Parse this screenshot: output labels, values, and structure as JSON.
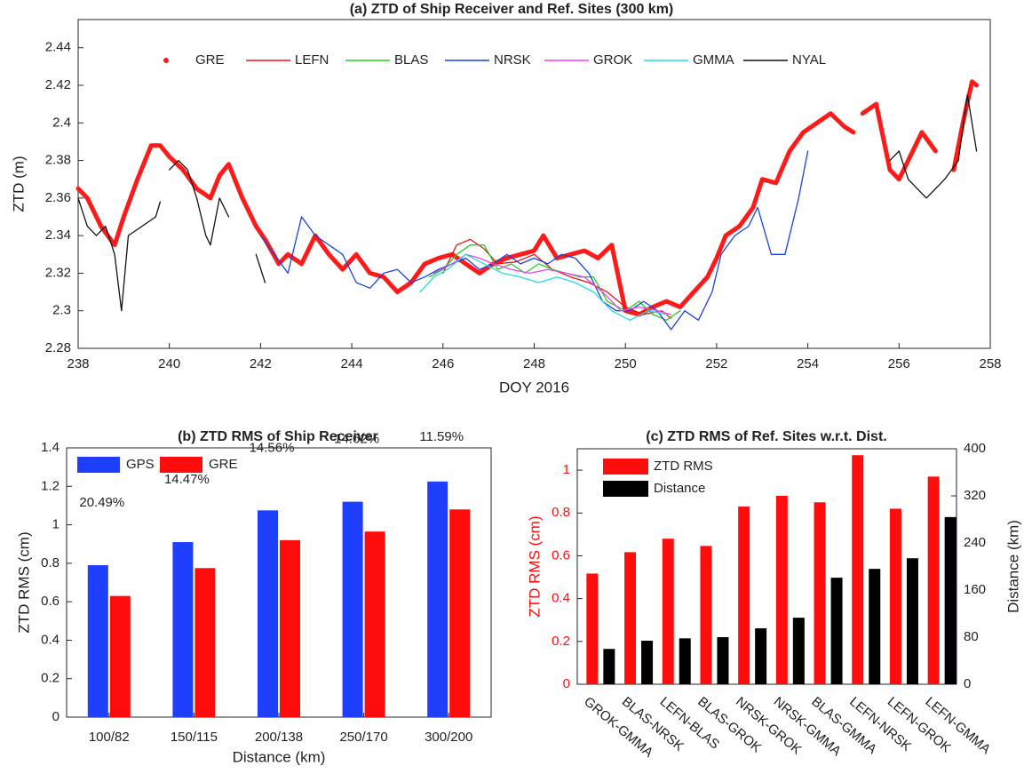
{
  "chart_data": [
    {
      "type": "line",
      "title": "(a) ZTD of Ship Receiver and Ref. Sites (300 km)",
      "xlabel": "DOY 2016",
      "ylabel": "ZTD (m)",
      "xlim": [
        238,
        258
      ],
      "xticks": [
        238,
        240,
        242,
        244,
        246,
        248,
        250,
        252,
        254,
        256,
        258
      ],
      "ylim": [
        2.28,
        2.455
      ],
      "yticks": [
        2.28,
        2.3,
        2.32,
        2.34,
        2.36,
        2.38,
        2.4,
        2.42,
        2.44
      ],
      "legend": "top",
      "series": [
        {
          "name": "GRE",
          "color": "#ff1a1a",
          "marker": "dot",
          "x": [
            238.0,
            238.2,
            238.5,
            238.8,
            239.0,
            239.3,
            239.6,
            239.8,
            240.0,
            240.3,
            240.6,
            240.9,
            241.1,
            241.3,
            241.6,
            241.9,
            242.1,
            242.4,
            242.6,
            242.9,
            243.2,
            243.5,
            243.8,
            244.1,
            244.4,
            244.7,
            245.0,
            245.3,
            245.6,
            245.9,
            246.2,
            246.5,
            246.8,
            247.1,
            247.4,
            247.7,
            248.0,
            248.2,
            248.5,
            248.8,
            249.1,
            249.4,
            249.7,
            250.0,
            250.3,
            250.6,
            250.9,
            251.2,
            251.5,
            251.8,
            252.0,
            252.2,
            252.5,
            252.8,
            253.0,
            253.3,
            253.6,
            253.9,
            254.2,
            254.5,
            254.8,
            255.0,
            255.1,
            255.2,
            255.5,
            255.8,
            256.0,
            256.2,
            256.5,
            256.8,
            257.0,
            257.2,
            257.4,
            257.6,
            257.7
          ],
          "values": [
            2.365,
            2.36,
            2.345,
            2.335,
            2.35,
            2.37,
            2.388,
            2.388,
            2.382,
            2.375,
            2.365,
            2.36,
            2.372,
            2.378,
            2.36,
            2.345,
            2.338,
            2.325,
            2.33,
            2.325,
            2.34,
            2.33,
            2.322,
            2.33,
            2.32,
            2.318,
            2.31,
            2.315,
            2.325,
            2.328,
            2.33,
            2.325,
            2.32,
            2.325,
            2.328,
            2.33,
            2.332,
            2.34,
            2.328,
            2.33,
            2.332,
            2.328,
            2.335,
            2.3,
            2.298,
            2.302,
            2.305,
            2.302,
            2.31,
            2.318,
            2.328,
            2.34,
            2.345,
            2.355,
            2.37,
            2.368,
            2.385,
            2.395,
            2.4,
            2.405,
            2.398,
            2.395,
            null,
            2.405,
            2.41,
            2.375,
            2.37,
            2.38,
            2.395,
            2.385,
            null,
            2.375,
            2.4,
            2.422,
            2.42
          ]
        },
        {
          "name": "LEFN",
          "color": "#e8141e",
          "marker": "none",
          "x": [
            246.0,
            246.3,
            246.6,
            246.9,
            247.2,
            247.6,
            248.0,
            248.4,
            248.8,
            249.2,
            249.6,
            250.0,
            250.4,
            250.8,
            251.0
          ],
          "values": [
            2.32,
            2.335,
            2.338,
            2.333,
            2.325,
            2.326,
            2.33,
            2.322,
            2.318,
            2.315,
            2.31,
            2.302,
            2.298,
            2.3,
            2.296
          ]
        },
        {
          "name": "BLAS",
          "color": "#22cc22",
          "marker": "none",
          "x": [
            245.7,
            246.0,
            246.3,
            246.6,
            246.9,
            247.2,
            247.5,
            247.8,
            248.1,
            248.4,
            248.7,
            249.0,
            249.3,
            249.6,
            250.0,
            250.3,
            250.6,
            250.9,
            251.2
          ],
          "values": [
            2.318,
            2.322,
            2.33,
            2.335,
            2.335,
            2.322,
            2.325,
            2.32,
            2.325,
            2.322,
            2.32,
            2.318,
            2.318,
            2.305,
            2.3,
            2.305,
            2.298,
            2.295,
            2.3
          ]
        },
        {
          "name": "NRSK",
          "color": "#1a44dd",
          "marker": "none",
          "x": [
            242.0,
            242.3,
            242.6,
            242.9,
            243.2,
            243.5,
            243.8,
            244.1,
            244.4,
            244.7,
            245.0,
            245.3,
            245.6,
            245.9,
            246.2,
            246.5,
            246.8,
            247.1,
            247.4,
            247.7,
            248.0,
            248.3,
            248.6,
            248.9,
            249.2,
            249.5,
            249.8,
            250.1,
            250.4,
            250.7,
            251.0,
            251.3,
            251.6,
            251.9,
            252.1,
            252.4,
            252.7,
            252.9,
            253.2,
            253.5,
            253.8,
            254.0
          ],
          "values": [
            2.34,
            2.33,
            2.32,
            2.35,
            2.34,
            2.335,
            2.33,
            2.315,
            2.312,
            2.32,
            2.322,
            2.315,
            2.318,
            2.322,
            2.325,
            2.328,
            2.322,
            2.325,
            2.33,
            2.325,
            2.328,
            2.325,
            2.33,
            2.328,
            2.32,
            2.305,
            2.3,
            2.3,
            2.305,
            2.3,
            2.29,
            2.3,
            2.295,
            2.31,
            2.33,
            2.34,
            2.345,
            2.355,
            2.33,
            2.33,
            2.36,
            2.385
          ]
        },
        {
          "name": "GROK",
          "color": "#ee44ee",
          "marker": "none",
          "x": [
            245.8,
            246.2,
            246.5,
            246.8,
            247.1,
            247.5,
            247.9,
            248.3,
            248.7,
            249.1,
            249.5,
            249.9,
            250.3,
            250.7,
            251.0
          ],
          "values": [
            2.32,
            2.325,
            2.33,
            2.328,
            2.325,
            2.322,
            2.32,
            2.322,
            2.32,
            2.318,
            2.31,
            2.3,
            2.302,
            2.3,
            2.298
          ]
        },
        {
          "name": "GMMA",
          "color": "#22dddd",
          "marker": "none",
          "x": [
            245.5,
            245.8,
            246.1,
            246.5,
            246.9,
            247.3,
            247.7,
            248.1,
            248.5,
            248.9,
            249.3,
            249.7,
            250.1,
            250.5,
            250.9
          ],
          "values": [
            2.31,
            2.318,
            2.322,
            2.33,
            2.325,
            2.32,
            2.318,
            2.315,
            2.318,
            2.315,
            2.31,
            2.3,
            2.295,
            2.3,
            2.298
          ]
        },
        {
          "name": "NYAL",
          "color": "#111111",
          "marker": "none",
          "x": [
            238.0,
            238.2,
            238.4,
            238.6,
            238.8,
            238.95,
            239.1,
            239.4,
            239.7,
            239.8,
            239.9,
            240.0,
            240.2,
            240.4,
            240.6,
            240.8,
            240.9,
            241.1,
            241.3,
            241.6,
            241.9,
            242.1,
            249.0,
            255.8,
            256.0,
            256.2,
            256.4,
            256.6,
            256.8,
            257.0,
            257.3,
            257.5,
            257.7
          ],
          "values": [
            2.36,
            2.345,
            2.34,
            2.345,
            2.33,
            2.3,
            2.34,
            2.345,
            2.35,
            2.358,
            null,
            2.375,
            2.38,
            2.375,
            2.36,
            2.34,
            2.335,
            2.36,
            2.35,
            null,
            2.33,
            2.315,
            null,
            2.38,
            2.385,
            2.37,
            2.365,
            2.36,
            2.365,
            2.37,
            2.38,
            2.415,
            2.385
          ]
        }
      ]
    },
    {
      "type": "bar",
      "title": "(b) ZTD RMS of Ship Receiver",
      "xlabel": "Distance (km)",
      "ylabel": "ZTD RMS (cm)",
      "categories": [
        "100/82",
        "150/115",
        "200/138",
        "250/170",
        "300/200"
      ],
      "ylim": [
        0,
        1.4
      ],
      "yticks": [
        0,
        0.2,
        0.4,
        0.6,
        0.8,
        1,
        1.2,
        1.4
      ],
      "legend": "upper left",
      "annotations": [
        "20.49%",
        "14.47%",
        "14.56%",
        "14.62%",
        "11.59%"
      ],
      "series": [
        {
          "name": "GPS",
          "color": "#1f3fff",
          "values": [
            0.79,
            0.91,
            1.075,
            1.12,
            1.225
          ]
        },
        {
          "name": "GRE",
          "color": "#ff0d0d",
          "values": [
            0.63,
            0.775,
            0.92,
            0.965,
            1.08
          ]
        }
      ]
    },
    {
      "type": "bar",
      "title": "(c) ZTD RMS of Ref. Sites w.r.t. Dist.",
      "ylabel": "ZTD RMS (cm)",
      "y2label": "Distance (km)",
      "categories": [
        "GROK-GMMA",
        "BLAS-NRSK",
        "LEFN-BLAS",
        "BLAS-GROK",
        "NRSK-GROK",
        "NRSK-GMMA",
        "BLAS-GMMA",
        "LEFN-NRSK",
        "LEFN-GROK",
        "LEFN-GMMA"
      ],
      "ylim": [
        0,
        1.1
      ],
      "yticks": [
        0,
        0.2,
        0.4,
        0.6,
        0.8,
        1
      ],
      "ycolor": "#ff0d0d",
      "y2lim": [
        0,
        400
      ],
      "y2ticks": [
        0,
        80,
        160,
        240,
        320,
        400
      ],
      "legend": "upper left",
      "series": [
        {
          "name": "ZTD RMS",
          "color": "#ff0d0d",
          "values": [
            0.517,
            0.617,
            0.68,
            0.646,
            0.83,
            0.88,
            0.85,
            1.07,
            0.82,
            0.97
          ]
        },
        {
          "name": "Distance",
          "color": "#000000",
          "axis": "y2",
          "values": [
            60,
            74,
            78,
            80,
            95,
            113,
            181,
            196,
            214,
            284
          ]
        }
      ]
    }
  ]
}
